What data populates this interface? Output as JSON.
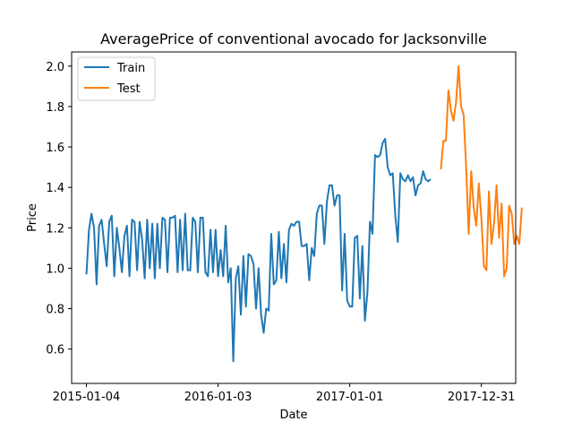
{
  "chart_data": {
    "type": "line",
    "title": "AveragePrice of conventional avocado for Jacksonville",
    "xlabel": "Date",
    "ylabel": "Price",
    "x_ticks": [
      "2015-01-04",
      "2016-01-03",
      "2017-01-01",
      "2017-12-31"
    ],
    "y_ticks": [
      "0.6",
      "0.8",
      "1.0",
      "1.2",
      "1.4",
      "1.6",
      "1.8",
      "2.0"
    ],
    "xlim": [
      "2014-11-24",
      "2018-04-05"
    ],
    "ylim": [
      0.43,
      2.07
    ],
    "grid": false,
    "legend_position": "top-left",
    "series": [
      {
        "name": "Train",
        "color": "#1f77b4",
        "start_date": "2015-01-04",
        "frequency": "weekly",
        "values": [
          0.97,
          1.19,
          1.27,
          1.2,
          0.92,
          1.21,
          1.24,
          1.12,
          1.01,
          1.23,
          1.26,
          0.96,
          1.2,
          1.1,
          0.98,
          1.16,
          1.21,
          0.96,
          1.24,
          1.23,
          0.99,
          1.23,
          1.14,
          0.95,
          1.24,
          1.0,
          1.22,
          0.95,
          1.22,
          1.0,
          1.25,
          1.24,
          0.98,
          1.25,
          1.25,
          1.26,
          0.98,
          1.24,
          0.99,
          1.27,
          0.99,
          0.99,
          1.25,
          1.23,
          0.98,
          1.25,
          1.25,
          0.98,
          0.96,
          1.19,
          0.98,
          1.19,
          0.96,
          1.09,
          0.96,
          1.21,
          0.93,
          1.0,
          0.54,
          0.95,
          1.01,
          0.77,
          1.06,
          0.81,
          1.07,
          1.06,
          1.02,
          0.8,
          1.0,
          0.77,
          0.68,
          0.8,
          0.79,
          1.17,
          0.92,
          0.94,
          1.18,
          0.95,
          1.12,
          0.93,
          1.19,
          1.22,
          1.21,
          1.23,
          1.23,
          1.11,
          1.11,
          1.12,
          0.94,
          1.1,
          1.06,
          1.27,
          1.31,
          1.31,
          1.12,
          1.33,
          1.41,
          1.41,
          1.31,
          1.36,
          1.36,
          0.89,
          1.17,
          0.84,
          0.81,
          0.81,
          1.15,
          1.16,
          0.85,
          1.11,
          0.74,
          0.88,
          1.23,
          1.17,
          1.56,
          1.55,
          1.56,
          1.62,
          1.64,
          1.5,
          1.46,
          1.47,
          1.26,
          1.13,
          1.47,
          1.44,
          1.43,
          1.46,
          1.43,
          1.45,
          1.36,
          1.41,
          1.42,
          1.48,
          1.44,
          1.43,
          1.44
        ]
      },
      {
        "name": "Test",
        "color": "#ff7f0e",
        "start_date": "2017-09-10",
        "frequency": "weekly",
        "values": [
          1.49,
          1.63,
          1.63,
          1.88,
          1.78,
          1.73,
          1.82,
          2.0,
          1.8,
          1.76,
          1.5,
          1.17,
          1.48,
          1.3,
          1.21,
          1.42,
          1.25,
          1.01,
          0.99,
          1.38,
          1.12,
          1.22,
          1.41,
          1.15,
          1.32,
          0.96,
          1.0,
          1.31,
          1.27,
          1.12,
          1.16,
          1.12,
          1.3
        ]
      }
    ]
  }
}
